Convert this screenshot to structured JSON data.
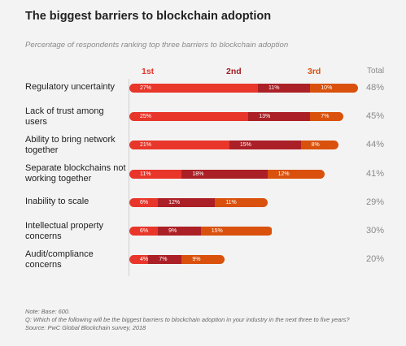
{
  "chart_data": {
    "type": "bar",
    "orientation": "horizontal",
    "stacked": true,
    "title": "The biggest barriers to blockchain adoption",
    "subtitle": "Percentage of respondents ranking top three barriers to blockchain adoption",
    "column_headers": [
      "1st",
      "2nd",
      "3rd"
    ],
    "total_header": "Total",
    "categories": [
      "Regulatory uncertainty",
      "Lack of trust among users",
      "Ability to bring network together",
      "Separate blockchains not working together",
      "Inability to scale",
      "Intellectual property concerns",
      "Audit/compliance concerns"
    ],
    "series": [
      {
        "name": "1st",
        "color": "#e8362a",
        "values": [
          27,
          25,
          21,
          11,
          6,
          6,
          4
        ]
      },
      {
        "name": "2nd",
        "color": "#ab2026",
        "values": [
          11,
          13,
          15,
          18,
          12,
          9,
          7
        ]
      },
      {
        "name": "3rd",
        "color": "#d9510c",
        "values": [
          10,
          7,
          8,
          12,
          11,
          15,
          9
        ]
      }
    ],
    "totals": [
      "48%",
      "45%",
      "44%",
      "41%",
      "29%",
      "30%",
      "20%"
    ],
    "value_suffix": "%",
    "notes": [
      "Note: Base: 600.",
      "Q: Which of the following will be the biggest barriers to blockchain adoption in your industry in the next three to five years?",
      "Source: PwC Global Blockchain survey, 2018"
    ]
  },
  "colors": {
    "header_1st": "#e8362a",
    "header_2nd": "#a01f24",
    "header_3rd": "#d9510c"
  }
}
